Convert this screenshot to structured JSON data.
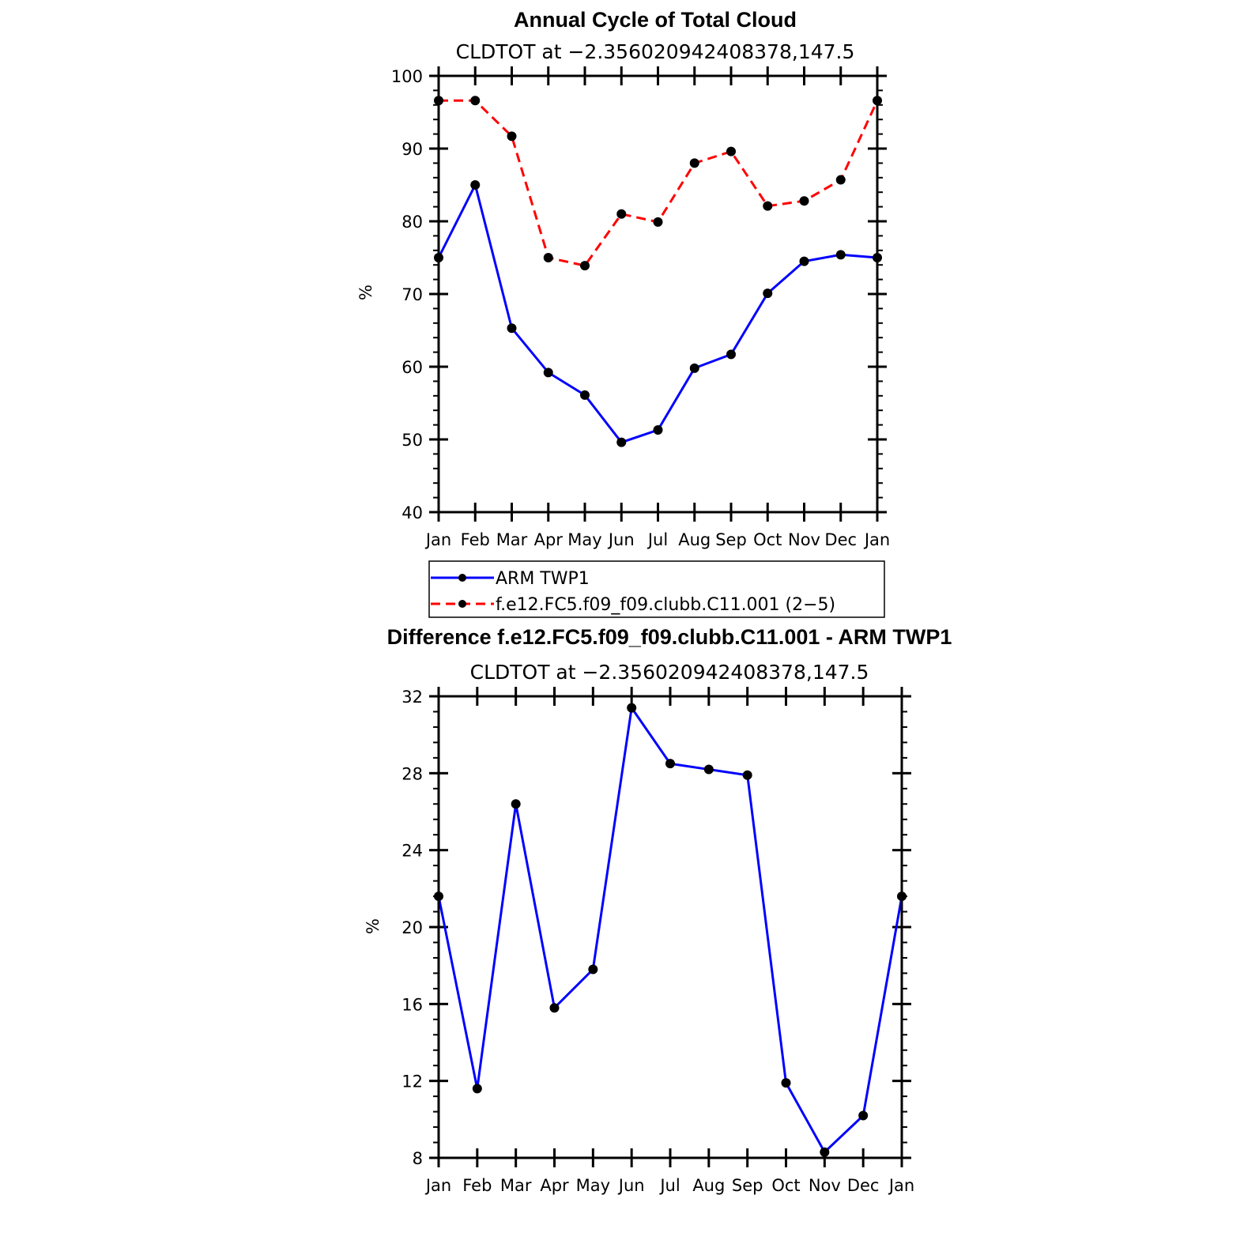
{
  "chart_data": [
    {
      "type": "line",
      "title": "Annual Cycle of Total Cloud",
      "subtitle": "CLDTOT at −2.356020942408378,147.5",
      "ylabel": "%",
      "ylim": [
        40,
        100
      ],
      "yticks": [
        "40",
        "50",
        "60",
        "70",
        "80",
        "90",
        "100"
      ],
      "categories": [
        "Jan",
        "Feb",
        "Mar",
        "Apr",
        "May",
        "Jun",
        "Jul",
        "Aug",
        "Sep",
        "Oct",
        "Nov",
        "Dec",
        "Jan"
      ],
      "series": [
        {
          "name": "ARM TWP1",
          "color": "#0000ff",
          "style": "solid",
          "values": [
            75.0,
            85.0,
            65.3,
            59.2,
            56.1,
            49.6,
            51.3,
            59.8,
            61.7,
            70.1,
            74.5,
            75.4,
            75.0
          ]
        },
        {
          "name": "f.e12.FC5.f09_f09.clubb.C11.001 (2−5)",
          "color": "#ff0000",
          "style": "dashed",
          "values": [
            96.6,
            96.6,
            91.7,
            75.0,
            73.9,
            81.0,
            79.9,
            88.0,
            89.6,
            82.1,
            82.8,
            85.7,
            96.6
          ]
        }
      ],
      "legend": {
        "entries": [
          "ARM TWP1",
          "f.e12.FC5.f09_f09.clubb.C11.001 (2−5)"
        ],
        "position": "below"
      }
    },
    {
      "type": "line",
      "title": "Difference f.e12.FC5.f09_f09.clubb.C11.001 - ARM TWP1",
      "subtitle": "CLDTOT at −2.356020942408378,147.5",
      "ylabel": "%",
      "ylim": [
        8,
        32
      ],
      "yticks": [
        "8",
        "12",
        "16",
        "20",
        "24",
        "28",
        "32"
      ],
      "categories": [
        "Jan",
        "Feb",
        "Mar",
        "Apr",
        "May",
        "Jun",
        "Jul",
        "Aug",
        "Sep",
        "Oct",
        "Nov",
        "Dec",
        "Jan"
      ],
      "series": [
        {
          "name": "Difference",
          "color": "#0000ff",
          "style": "solid",
          "values": [
            21.6,
            11.6,
            26.4,
            15.8,
            17.8,
            31.4,
            28.5,
            28.2,
            27.9,
            11.9,
            8.3,
            10.2,
            21.6
          ]
        }
      ]
    }
  ]
}
